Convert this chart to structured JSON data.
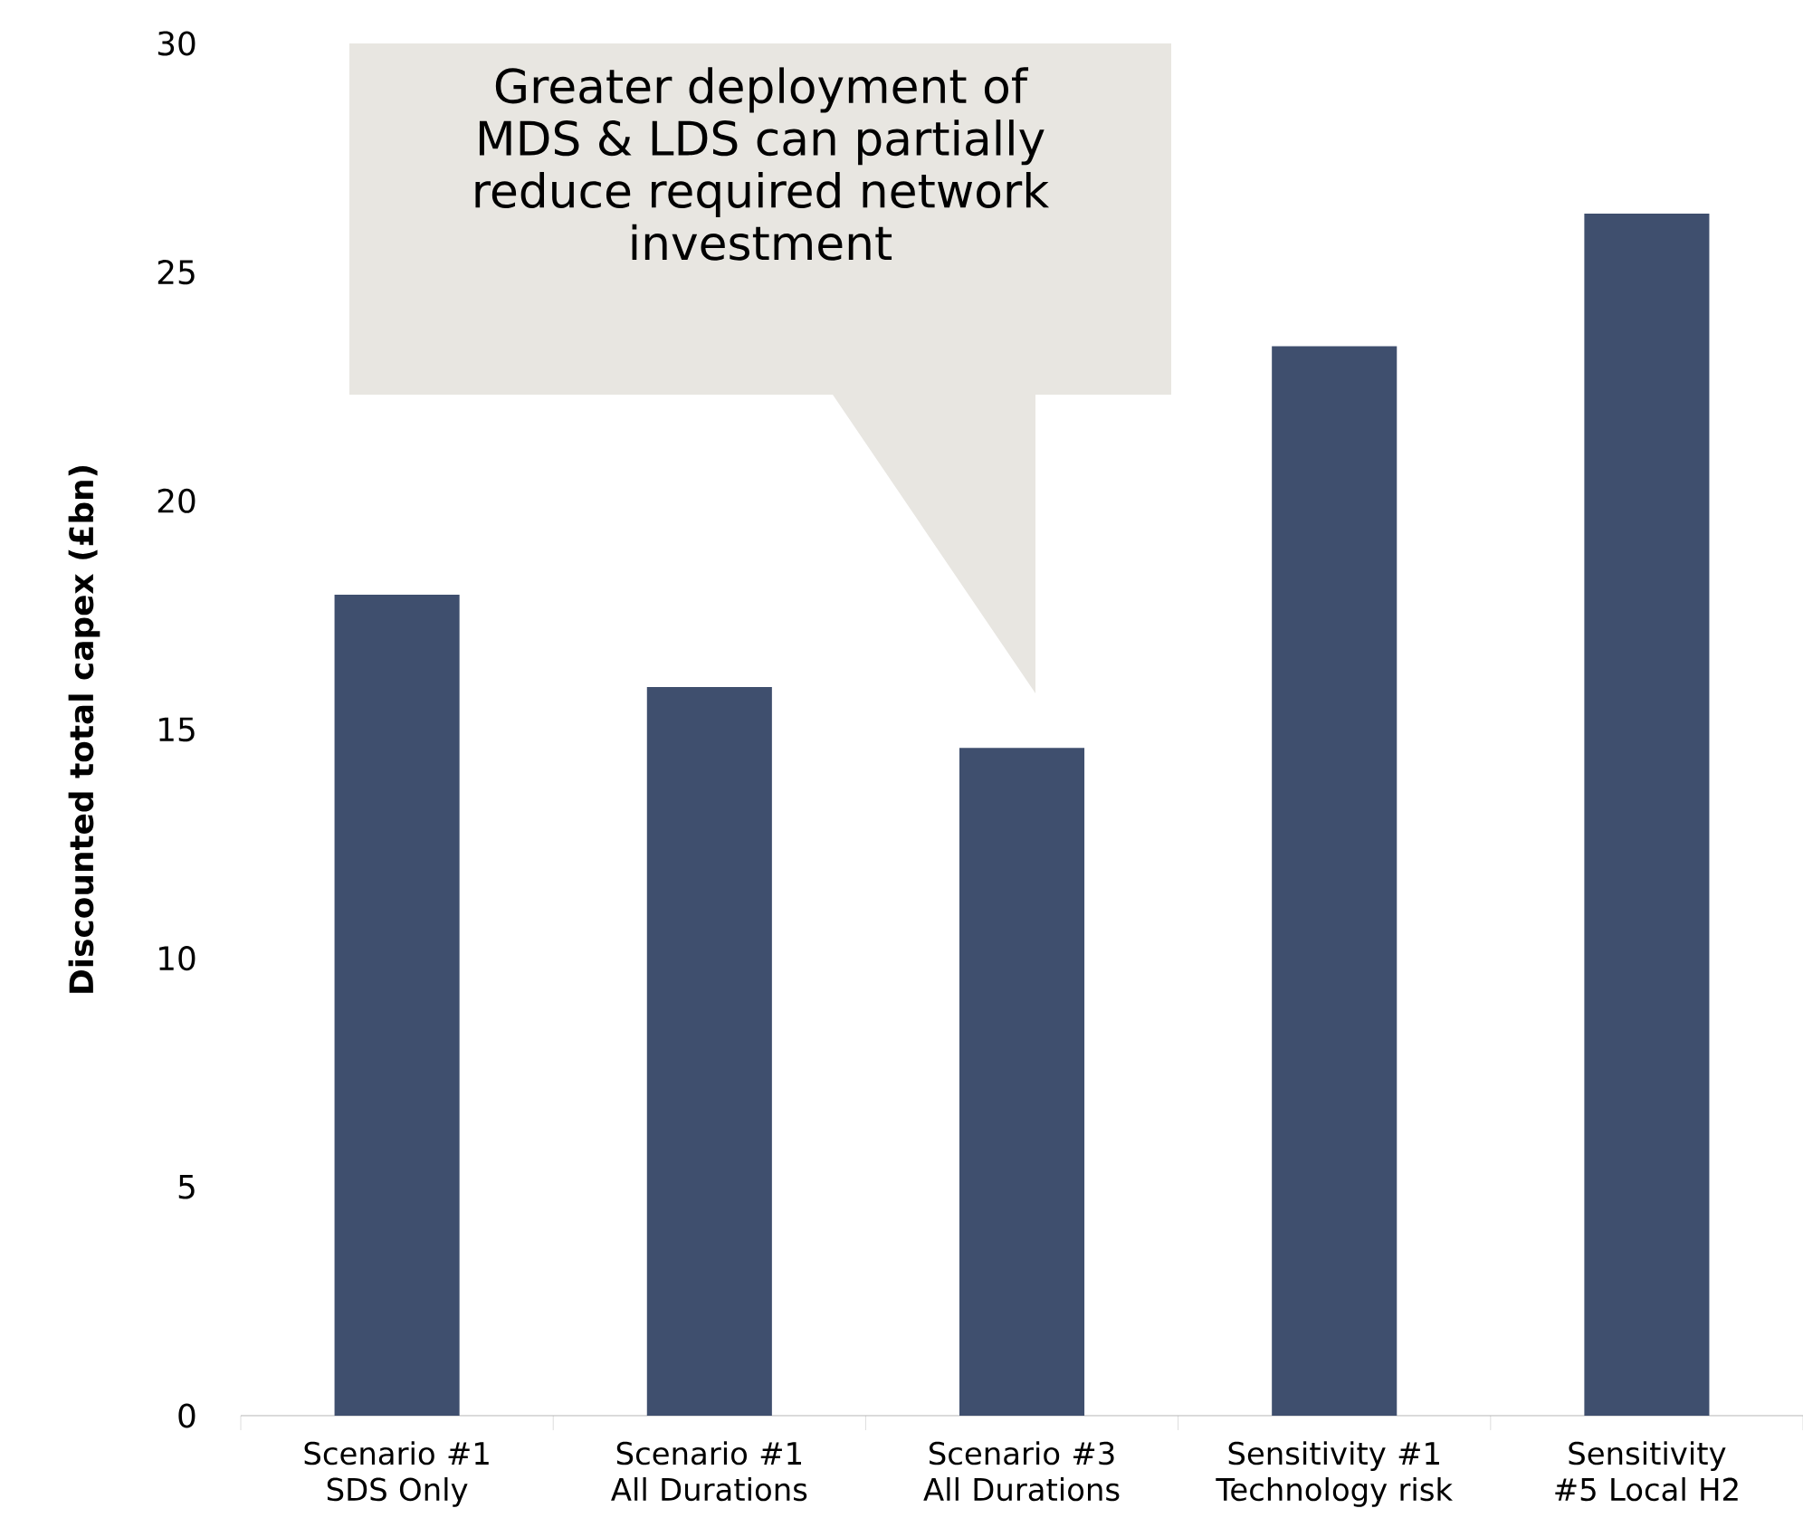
{
  "chart_data": {
    "type": "bar",
    "ylabel": "Discounted total capex (£bn)",
    "categories": [
      "Scenario #1 SDS Only",
      "Scenario #1 All Durations",
      "Scenario #3 All Durations",
      "Sensitivity #1 Technology risk",
      "Sensitivity #5 Local H2"
    ],
    "values": [
      17.95,
      15.93,
      14.6,
      23.38,
      26.28
    ],
    "color": "#3f4f6e",
    "ylim": [
      0,
      30
    ],
    "yticks": [
      0,
      5,
      10,
      15,
      20,
      25,
      30
    ],
    "annotations": [
      "Greater deployment of MDS & LDS can partially reduce required network investment"
    ]
  }
}
